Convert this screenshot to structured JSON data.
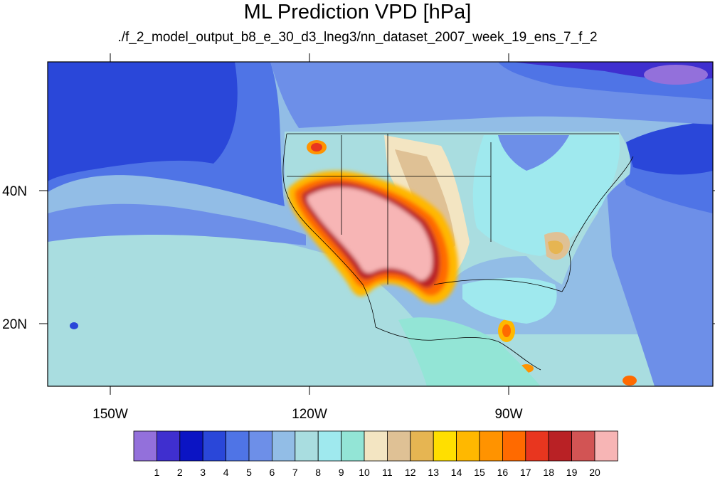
{
  "header": {
    "title": "ML Prediction VPD [hPa]",
    "subtitle": "./f_2_model_output_b8_e_30_d3_lneg3/nn_dataset_2007_week_19_ens_7_f_2"
  },
  "axes": {
    "lon_labels": [
      "150W",
      "120W",
      "90W"
    ],
    "lat_labels": [
      "40N",
      "20N"
    ]
  },
  "colorbar": {
    "labels": [
      "1",
      "2",
      "3",
      "4",
      "5",
      "6",
      "7",
      "8",
      "9",
      "10",
      "11",
      "12",
      "13",
      "14",
      "15",
      "16",
      "17",
      "18",
      "19",
      "20"
    ],
    "colors": [
      "#9370db",
      "#3f2fcf",
      "#0b14c4",
      "#2a47d9",
      "#4f74e6",
      "#6d8fe8",
      "#92bde6",
      "#a9dde0",
      "#9fe9ee",
      "#93e5d6",
      "#f3e5c2",
      "#dfc195",
      "#e6b552",
      "#ffdf00",
      "#ffb800",
      "#ff9300",
      "#ff6a00",
      "#e8361f",
      "#b92125",
      "#d25454",
      "#f7b5b5"
    ]
  },
  "chart_data": {
    "type": "heatmap",
    "title": "ML Prediction VPD [hPa]",
    "subtitle": "./f_2_model_output_b8_e_30_d3_lneg3/nn_dataset_2007_week_19_ens_7_f_2",
    "xlim_lon": [
      -159.5,
      -60
    ],
    "ylim_lat": [
      10.5,
      59.5
    ],
    "x_ticks": [
      "150W",
      "120W",
      "90W"
    ],
    "y_ticks": [
      "40N",
      "20N"
    ],
    "levels": [
      1,
      2,
      3,
      4,
      5,
      6,
      7,
      8,
      9,
      10,
      11,
      12,
      13,
      14,
      15,
      16,
      17,
      18,
      19,
      20
    ],
    "colorbar_labels": [
      "1",
      "2",
      "3",
      "4",
      "5",
      "6",
      "7",
      "8",
      "9",
      "10",
      "11",
      "12",
      "13",
      "14",
      "15",
      "16",
      "17",
      "18",
      "19",
      "20"
    ]
  }
}
